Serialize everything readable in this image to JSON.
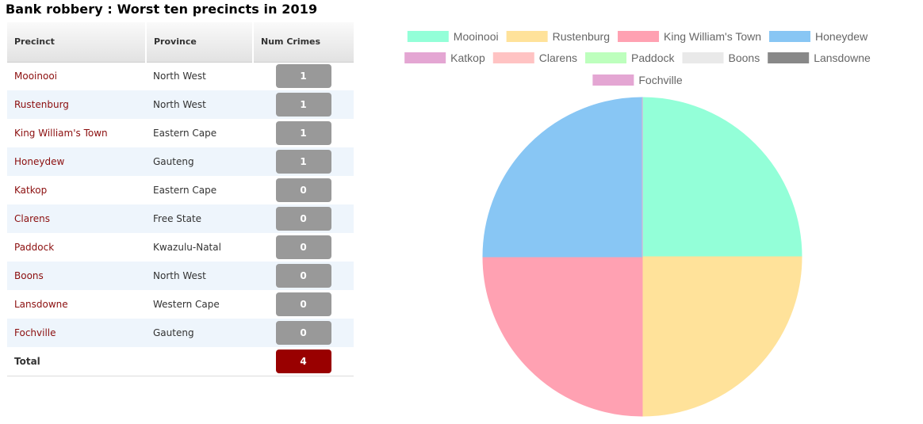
{
  "title": "Bank robbery : Worst ten precincts in 2019",
  "table": {
    "headers": [
      "Precinct",
      "Province",
      "Num Crimes"
    ],
    "rows": [
      {
        "precinct": "Mooinooi",
        "province": "North West",
        "count": "1"
      },
      {
        "precinct": "Rustenburg",
        "province": "North West",
        "count": "1"
      },
      {
        "precinct": "King William's Town",
        "province": "Eastern Cape",
        "count": "1"
      },
      {
        "precinct": "Honeydew",
        "province": "Gauteng",
        "count": "1"
      },
      {
        "precinct": "Katkop",
        "province": "Eastern Cape",
        "count": "0"
      },
      {
        "precinct": "Clarens",
        "province": "Free State",
        "count": "0"
      },
      {
        "precinct": "Paddock",
        "province": "Kwazulu-Natal",
        "count": "0"
      },
      {
        "precinct": "Boons",
        "province": "North West",
        "count": "0"
      },
      {
        "precinct": "Lansdowne",
        "province": "Western Cape",
        "count": "0"
      },
      {
        "precinct": "Fochville",
        "province": "Gauteng",
        "count": "0"
      }
    ],
    "total_label": "Total",
    "total_value": "4"
  },
  "chart_data": {
    "type": "pie",
    "categories": [
      "Mooinooi",
      "Rustenburg",
      "King William's Town",
      "Honeydew",
      "Katkop",
      "Clarens",
      "Paddock",
      "Boons",
      "Lansdowne",
      "Fochville"
    ],
    "values": [
      1,
      1,
      1,
      1,
      0,
      0,
      0,
      0,
      0,
      0
    ],
    "colors": [
      "#93ffd8",
      "#ffe29a",
      "#ffa1b2",
      "#88c6f4",
      "#e4a6d3",
      "#ffc3c3",
      "#bdffbd",
      "#e9e9e9",
      "#888888",
      "#e4a6d3"
    ],
    "legend_position": "top"
  }
}
